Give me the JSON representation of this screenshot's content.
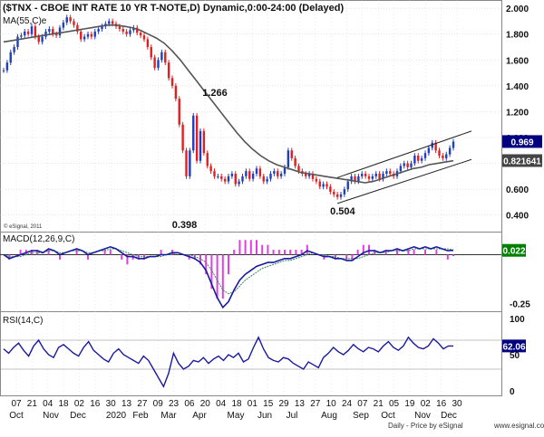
{
  "header": {
    "title": "($TNX - CBOE INT RATE 10 YR T-NOTE,D) Dynamic,0:00-24:00 (Delayed)",
    "ma_label": "MA(55,C)e",
    "watermark": "© eSignal, 2011"
  },
  "footer": {
    "credit": "Daily - Price by eSignal",
    "site": "www.esignal.com"
  },
  "colors": {
    "candle_up": "#1f3fbf",
    "candle_down": "#e02020",
    "ma": "#555555",
    "channel": "#222222",
    "macd_line": "#1a1aa0",
    "macd_signal": "#2e8b57",
    "macd_hist": "#e040e0",
    "rsi_line": "#1a1aa0",
    "grid": "#cccccc",
    "last_price_bg": "#000080"
  },
  "chart_data": [
    {
      "type": "candlestick",
      "panel": "price",
      "title": "($TNX - CBOE INT RATE 10 YR T-NOTE,D) Dynamic,0:00-24:00 (Delayed)",
      "xlabel": "",
      "ylabel": "",
      "ylim": [
        0.3,
        2.05
      ],
      "yticks": [
        "2.000",
        "1.800",
        "1.600",
        "1.400",
        "1.200",
        "1.000",
        "0.800",
        "0.600",
        "0.400"
      ],
      "xticks": {
        "days": [
          "07",
          "21",
          "04",
          "18",
          "02",
          "16",
          "30",
          "13",
          "27",
          "09",
          "23",
          "06",
          "20",
          "04",
          "18",
          "01",
          "15",
          "29",
          "13",
          "27",
          "10",
          "24",
          "07",
          "21",
          "05",
          "19",
          "02",
          "16",
          "30"
        ],
        "months": [
          "Oct",
          "Nov",
          "Dec",
          "2020",
          "Feb",
          "Mar",
          "Apr",
          "May",
          "Jun",
          "Jul",
          "Aug",
          "Sep",
          "Oct",
          "Nov",
          "Dec"
        ]
      },
      "close_series": [
        1.52,
        1.58,
        1.66,
        1.7,
        1.78,
        1.79,
        1.82,
        1.8,
        1.86,
        1.78,
        1.74,
        1.78,
        1.82,
        1.84,
        1.8,
        1.79,
        1.85,
        1.89,
        1.93,
        1.9,
        1.87,
        1.82,
        1.76,
        1.78,
        1.8,
        1.78,
        1.82,
        1.84,
        1.86,
        1.88,
        1.9,
        1.88,
        1.86,
        1.84,
        1.82,
        1.8,
        1.83,
        1.85,
        1.81,
        1.79,
        1.76,
        1.7,
        1.62,
        1.54,
        1.6,
        1.66,
        1.58,
        1.46,
        1.4,
        1.3,
        1.1,
        0.9,
        0.7,
        0.9,
        1.17,
        0.82,
        1.05,
        0.88,
        0.78,
        0.74,
        0.7,
        0.7,
        0.68,
        0.66,
        0.7,
        0.72,
        0.64,
        0.66,
        0.7,
        0.74,
        0.68,
        0.72,
        0.76,
        0.7,
        0.66,
        0.68,
        0.72,
        0.74,
        0.7,
        0.72,
        0.77,
        0.9,
        0.84,
        0.78,
        0.74,
        0.72,
        0.7,
        0.72,
        0.68,
        0.66,
        0.62,
        0.64,
        0.62,
        0.58,
        0.56,
        0.54,
        0.56,
        0.6,
        0.66,
        0.7,
        0.66,
        0.7,
        0.72,
        0.7,
        0.68,
        0.7,
        0.72,
        0.68,
        0.72,
        0.74,
        0.72,
        0.7,
        0.74,
        0.78,
        0.8,
        0.77,
        0.8,
        0.86,
        0.82,
        0.84,
        0.88,
        0.92,
        0.96,
        0.9,
        0.86,
        0.84,
        0.87,
        0.92,
        0.969
      ],
      "ma_label": "MA(55,C)e",
      "ma_series": [
        1.74,
        1.75,
        1.76,
        1.77,
        1.78,
        1.79,
        1.8,
        1.81,
        1.82,
        1.83,
        1.84,
        1.85,
        1.86,
        1.87,
        1.87,
        1.86,
        1.85,
        1.83,
        1.8,
        1.77,
        1.73,
        1.67,
        1.6,
        1.52,
        1.44,
        1.36,
        1.28,
        1.2,
        1.12,
        1.04,
        0.97,
        0.91,
        0.86,
        0.82,
        0.79,
        0.77,
        0.75,
        0.73,
        0.72,
        0.71,
        0.7,
        0.69,
        0.68,
        0.67,
        0.66,
        0.65,
        0.66,
        0.68,
        0.7,
        0.72,
        0.74,
        0.76,
        0.77,
        0.79,
        0.8,
        0.81,
        0.82
      ],
      "annotations": [
        {
          "text": "1.266",
          "x_index": 54,
          "value": 1.266
        },
        {
          "text": "0.398",
          "x_index": 50,
          "value": 0.398
        },
        {
          "text": "0.504",
          "x_index": 95,
          "value": 0.504
        }
      ],
      "last_price_labels": [
        "0.969",
        "0.821641"
      ]
    },
    {
      "type": "line",
      "panel": "macd",
      "title": "MACD(12,26,9,C)",
      "ylim": [
        -0.28,
        0.09
      ],
      "yticks": [
        "0.022",
        "-0.25"
      ],
      "series": [
        {
          "name": "MACD",
          "values": [
            0.0,
            -0.02,
            -0.01,
            0.0,
            0.01,
            0.02,
            0.02,
            0.01,
            0.03,
            0.02,
            0.0,
            0.01,
            0.02,
            0.03,
            0.02,
            0.0,
            0.01,
            0.02,
            0.03,
            0.04,
            0.03,
            0.01,
            -0.01,
            -0.01,
            -0.02,
            -0.02,
            -0.01,
            -0.01,
            0.0,
            0.0,
            0.01,
            0.01,
            0.0,
            -0.01,
            -0.02,
            -0.04,
            -0.08,
            -0.15,
            -0.22,
            -0.27,
            -0.24,
            -0.18,
            -0.13,
            -0.1,
            -0.08,
            -0.06,
            -0.05,
            -0.04,
            -0.04,
            -0.03,
            -0.02,
            -0.02,
            -0.01,
            0.0,
            0.02,
            0.01,
            0.0,
            -0.01,
            -0.01,
            -0.02,
            -0.02,
            -0.03,
            -0.03,
            -0.01,
            0.01,
            0.02,
            0.02,
            0.01,
            0.02,
            0.02,
            0.03,
            0.02,
            0.03,
            0.04,
            0.03,
            0.04,
            0.03,
            0.04,
            0.03,
            0.02,
            0.022
          ]
        },
        {
          "name": "Signal",
          "values": [
            0.0,
            -0.01,
            -0.01,
            -0.01,
            0.0,
            0.01,
            0.01,
            0.01,
            0.02,
            0.02,
            0.01,
            0.01,
            0.02,
            0.02,
            0.02,
            0.01,
            0.01,
            0.02,
            0.02,
            0.03,
            0.03,
            0.02,
            0.01,
            0.0,
            -0.01,
            -0.01,
            -0.01,
            -0.01,
            -0.01,
            0.0,
            0.0,
            0.01,
            0.0,
            0.0,
            -0.01,
            -0.02,
            -0.04,
            -0.08,
            -0.13,
            -0.18,
            -0.2,
            -0.19,
            -0.16,
            -0.13,
            -0.11,
            -0.09,
            -0.07,
            -0.06,
            -0.05,
            -0.04,
            -0.03,
            -0.03,
            -0.02,
            -0.01,
            0.0,
            0.01,
            0.0,
            0.0,
            -0.01,
            -0.01,
            -0.02,
            -0.02,
            -0.02,
            -0.02,
            -0.01,
            0.0,
            0.01,
            0.01,
            0.01,
            0.02,
            0.02,
            0.02,
            0.02,
            0.03,
            0.03,
            0.03,
            0.03,
            0.03,
            0.03,
            0.03,
            0.025
          ]
        }
      ],
      "last_value_label": "0.022"
    },
    {
      "type": "line",
      "panel": "rsi",
      "title": "RSI(14,C)",
      "ylim": [
        0,
        100
      ],
      "yticks": [
        "100",
        "50",
        "0"
      ],
      "series": [
        {
          "name": "RSI",
          "values": [
            58,
            52,
            60,
            66,
            56,
            48,
            62,
            70,
            58,
            50,
            46,
            60,
            64,
            58,
            52,
            48,
            60,
            68,
            56,
            50,
            44,
            40,
            52,
            58,
            50,
            46,
            42,
            38,
            48,
            42,
            30,
            18,
            6,
            24,
            52,
            38,
            30,
            34,
            42,
            40,
            46,
            38,
            44,
            48,
            42,
            50,
            46,
            52,
            40,
            44,
            60,
            74,
            58,
            46,
            42,
            40,
            46,
            44,
            38,
            34,
            30,
            40,
            36,
            32,
            46,
            52,
            60,
            54,
            50,
            56,
            64,
            58,
            54,
            60,
            58,
            54,
            62,
            68,
            60,
            56,
            62,
            74,
            66,
            60,
            58,
            62,
            72,
            66,
            58,
            62,
            62.06
          ]
        }
      ],
      "last_value_label": "62.06"
    }
  ]
}
